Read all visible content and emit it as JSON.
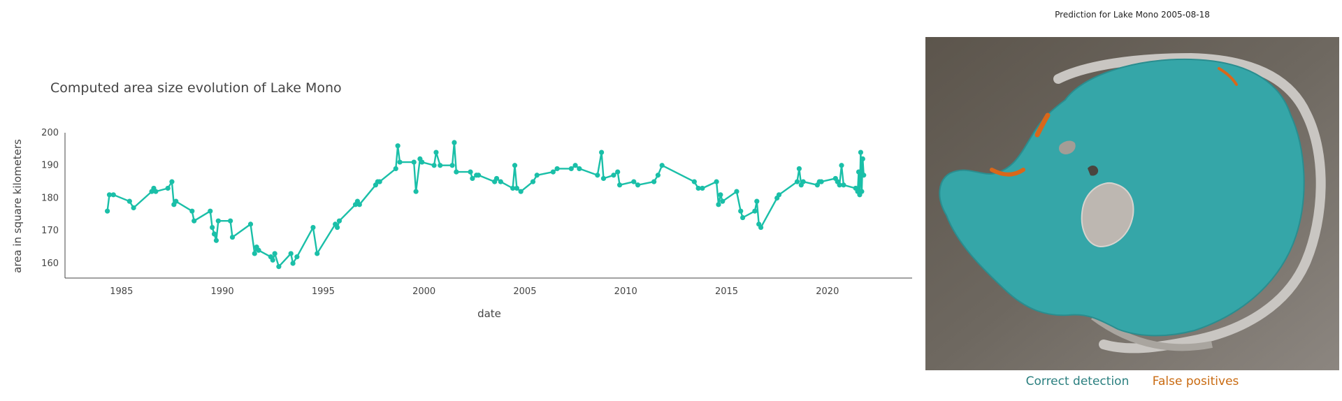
{
  "colors": {
    "line": "#1abfa8",
    "axis": "#444444",
    "correct": "#2a7f7f",
    "false_positive": "#c96a10",
    "water": "#35a6a8",
    "false_positive_fill": "#d9671a"
  },
  "chart_data": {
    "type": "line",
    "title": "Computed area size evolution of Lake Mono",
    "xlabel": "date",
    "ylabel": "area in square kilometers",
    "xlim": [
      1982.2,
      2024.2
    ],
    "ylim": [
      155.5,
      200
    ],
    "xticks": [
      1985,
      1990,
      1995,
      2000,
      2005,
      2010,
      2015,
      2020
    ],
    "yticks": [
      160,
      170,
      180,
      190,
      200
    ],
    "grid": false,
    "legend": "none",
    "series": [
      {
        "x": [
          1984.3,
          1984.4,
          1984.6,
          1985.4,
          1985.6,
          1986.5,
          1986.6,
          1986.7,
          1987.3,
          1987.5,
          1987.6,
          1987.7,
          1988.5,
          1988.6,
          1989.4,
          1989.5,
          1989.6,
          1989.7,
          1989.8,
          1990.4,
          1990.5,
          1991.4,
          1991.6,
          1991.7,
          1991.8,
          1992.4,
          1992.5,
          1992.6,
          1992.8,
          1993.4,
          1993.5,
          1993.7,
          1994.5,
          1994.7,
          1995.6,
          1995.7,
          1995.8,
          1996.6,
          1996.7,
          1996.8,
          1997.6,
          1997.7,
          1997.8,
          1998.6,
          1998.7,
          1998.8,
          1999.5,
          1999.6,
          1999.8,
          1999.9,
          2000.5,
          2000.6,
          2000.8,
          2001.4,
          2001.5,
          2001.6,
          2002.3,
          2002.4,
          2002.6,
          2002.7,
          2003.5,
          2003.6,
          2003.8,
          2004.4,
          2004.5,
          2004.6,
          2004.8,
          2005.4,
          2005.6,
          2006.4,
          2006.6,
          2007.3,
          2007.5,
          2007.7,
          2008.6,
          2008.8,
          2008.9,
          2009.4,
          2009.6,
          2009.7,
          2010.4,
          2010.6,
          2011.4,
          2011.6,
          2011.8,
          2013.4,
          2013.6,
          2013.8,
          2014.5,
          2014.6,
          2014.7,
          2014.8,
          2015.5,
          2015.7,
          2015.8,
          2016.4,
          2016.5,
          2016.6,
          2016.7,
          2017.5,
          2017.6,
          2018.5,
          2018.6,
          2018.7,
          2018.8,
          2019.5,
          2019.6,
          2019.7,
          2020.4,
          2020.5,
          2020.6,
          2020.7,
          2020.8,
          2021.4,
          2021.5,
          2021.55,
          2021.6,
          2021.65,
          2021.7,
          2021.75,
          2021.8
        ],
        "y": [
          176,
          181,
          181,
          179,
          177,
          182,
          183,
          182,
          183,
          185,
          178,
          179,
          176,
          173,
          176,
          171,
          169,
          167,
          173,
          173,
          168,
          172,
          163,
          165,
          164,
          162,
          161,
          163,
          159,
          163,
          160,
          162,
          171,
          163,
          172,
          171,
          173,
          178,
          179,
          178,
          184,
          185,
          185,
          189,
          196,
          191,
          191,
          182,
          192,
          191,
          190,
          194,
          190,
          190,
          197,
          188,
          188,
          186,
          187,
          187,
          185,
          186,
          185,
          183,
          190,
          183,
          182,
          185,
          187,
          188,
          189,
          189,
          190,
          189,
          187,
          194,
          186,
          187,
          188,
          184,
          185,
          184,
          185,
          187,
          190,
          185,
          183,
          183,
          185,
          178,
          181,
          179,
          182,
          176,
          174,
          176,
          179,
          172,
          171,
          180,
          181,
          185,
          189,
          184,
          185,
          184,
          185,
          185,
          186,
          185,
          184,
          190,
          184,
          183,
          182,
          188,
          181,
          194,
          182,
          192,
          187
        ]
      }
    ]
  },
  "prediction": {
    "title": "Prediction for Lake Mono 2005-08-18",
    "legend": {
      "correct_label": "Correct detection",
      "false_positive_label": "False positives"
    }
  }
}
